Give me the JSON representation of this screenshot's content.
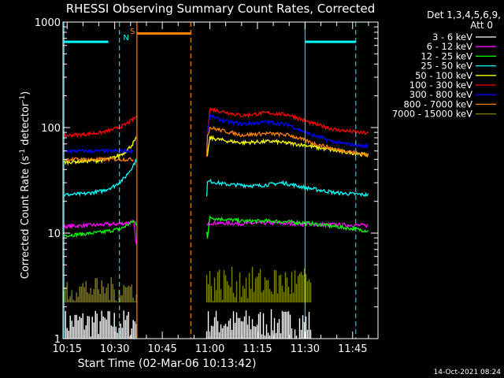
{
  "chart_data": {
    "type": "line",
    "title": "RHESSI Observing Summary Count Rates, Corrected",
    "xlabel": "Start Time (02-Mar-06 10:13:42)",
    "ylabel_main": "Corrected Count Rate (s",
    "ylabel_sup1": "-1",
    "ylabel_mid": " detector",
    "ylabel_sup2": "-1",
    "ylabel_end": ")",
    "yscale": "log",
    "ylim": [
      1,
      1000
    ],
    "xlim_min": [
      13.7,
      113
    ],
    "x_ticks": [
      {
        "t": 15,
        "label": "10:15"
      },
      {
        "t": 30,
        "label": "10:30"
      },
      {
        "t": 45,
        "label": "10:45"
      },
      {
        "t": 60,
        "label": "11:00"
      },
      {
        "t": 75,
        "label": "11:15"
      },
      {
        "t": 90,
        "label": "11:30"
      },
      {
        "t": 105,
        "label": "11:45"
      }
    ],
    "y_ticks": [
      {
        "v": 1,
        "label": "1"
      },
      {
        "v": 10,
        "label": "10"
      },
      {
        "v": 100,
        "label": "100"
      },
      {
        "v": 1000,
        "label": "1000"
      }
    ],
    "legend_header": [
      "Det 1,3,4,5,6,9,",
      "Att 0"
    ],
    "series": [
      {
        "name": "3 - 6 keV",
        "color": "#ffffff",
        "segments": [
          {
            "t": [
              14,
              37
            ],
            "v": [
              1,
              1.9
            ],
            "mode": "band"
          },
          {
            "t": [
              59,
              92
            ],
            "v": [
              1,
              1.9
            ],
            "mode": "band"
          }
        ]
      },
      {
        "name": "6 - 12 keV",
        "color": "#ff00ff",
        "segments": [
          {
            "t": [
              14,
              20,
              26,
              32,
              36,
              37
            ],
            "v": [
              11.5,
              11.8,
              12,
              12.3,
              12.8,
              7
            ]
          },
          {
            "t": [
              59,
              60,
              70,
              80,
              90,
              100,
              110
            ],
            "v": [
              11.5,
              12.5,
              12.3,
              12.5,
              12.2,
              12,
              11.8
            ]
          }
        ]
      },
      {
        "name": "12 - 25 keV",
        "color": "#00ff00",
        "segments": [
          {
            "t": [
              14,
              20,
              26,
              32,
              36,
              37
            ],
            "v": [
              9.5,
              9.8,
              10.2,
              11,
              13,
              12
            ]
          },
          {
            "t": [
              59,
              60,
              70,
              80,
              90,
              100,
              110
            ],
            "v": [
              8,
              14,
              13,
              13,
              12.5,
              11.5,
              10.5
            ]
          }
        ]
      },
      {
        "name": "25 - 50 keV",
        "color": "#00ffff",
        "segments": [
          {
            "t": [
              14,
              20,
              26,
              30,
              33,
              35,
              37
            ],
            "v": [
              23,
              23.5,
              25,
              28,
              33,
              40,
              50
            ]
          },
          {
            "t": [
              59,
              60,
              65,
              75,
              83,
              90,
              100,
              110
            ],
            "v": [
              30,
              31,
              29,
              28,
              30,
              27,
              24,
              23
            ]
          }
        ]
      },
      {
        "name": "50 - 100 keV",
        "color": "#ffff00",
        "segments": [
          {
            "t": [
              14,
              20,
              26,
              30,
              33,
              35,
              37
            ],
            "v": [
              47,
              48,
              49,
              52,
              58,
              66,
              80
            ]
          },
          {
            "t": [
              59,
              60,
              65,
              70,
              80,
              90,
              100,
              110
            ],
            "v": [
              50,
              80,
              75,
              72,
              74,
              68,
              60,
              55
            ]
          }
        ]
      },
      {
        "name": "100 - 300 keV",
        "color": "#ff0000",
        "segments": [
          {
            "t": [
              14,
              20,
              26,
              30,
              33,
              35,
              37
            ],
            "v": [
              84,
              86,
              90,
              97,
              105,
              115,
              128
            ]
          },
          {
            "t": [
              59,
              60,
              65,
              70,
              78,
              85,
              92,
              100,
              110
            ],
            "v": [
              80,
              150,
              140,
              130,
              138,
              132,
              110,
              95,
              88
            ]
          }
        ]
      },
      {
        "name": "300 - 800 keV",
        "color": "#0000ff",
        "segments": [
          {
            "t": [
              14,
              36
            ],
            "v": [
              60,
              60
            ]
          },
          {
            "t": [
              59,
              60,
              65,
              70,
              78,
              85,
              92,
              100,
              110
            ],
            "v": [
              80,
              128,
              115,
              108,
              113,
              106,
              85,
              72,
              66
            ]
          }
        ]
      },
      {
        "name": "800 - 7000 keV",
        "color": "#ff8000",
        "segments": [
          {
            "t": [
              14,
              36
            ],
            "v": [
              50,
              50
            ]
          },
          {
            "t": [
              59,
              60,
              65,
              70,
              78,
              85,
              92,
              100,
              110
            ],
            "v": [
              80,
              100,
              92,
              85,
              88,
              85,
              72,
              62,
              55
            ]
          }
        ]
      },
      {
        "name": "7000 - 15000 keV",
        "color": "#808000",
        "segments": [
          {
            "t": [
              14,
              37
            ],
            "v": [
              2.2,
              3.8
            ],
            "mode": "band"
          },
          {
            "t": [
              59,
              92
            ],
            "v": [
              2.2,
              4.8
            ],
            "mode": "band"
          }
        ]
      }
    ],
    "saa_bar": {
      "t": [
        37,
        54
      ],
      "v": 780,
      "color": "#ff8000"
    },
    "night_bars": [
      {
        "t": [
          14,
          28
        ],
        "v": 650
      },
      {
        "t": [
          90,
          106
        ],
        "v": 650
      }
    ],
    "solid_lines_cyan": [
      14,
      90
    ],
    "dashed_lines_cyan": [
      31.5,
      106
    ],
    "solid_lines_orange": [
      37
    ],
    "dashed_lines_orange": [
      54
    ],
    "flag_labels": [
      {
        "text": "S",
        "t": 35.6,
        "color": "#ff8000"
      },
      {
        "text": "N",
        "t": 33.6,
        "color": "#00ffff"
      }
    ],
    "footer": "14-Oct-2021 08:24"
  }
}
